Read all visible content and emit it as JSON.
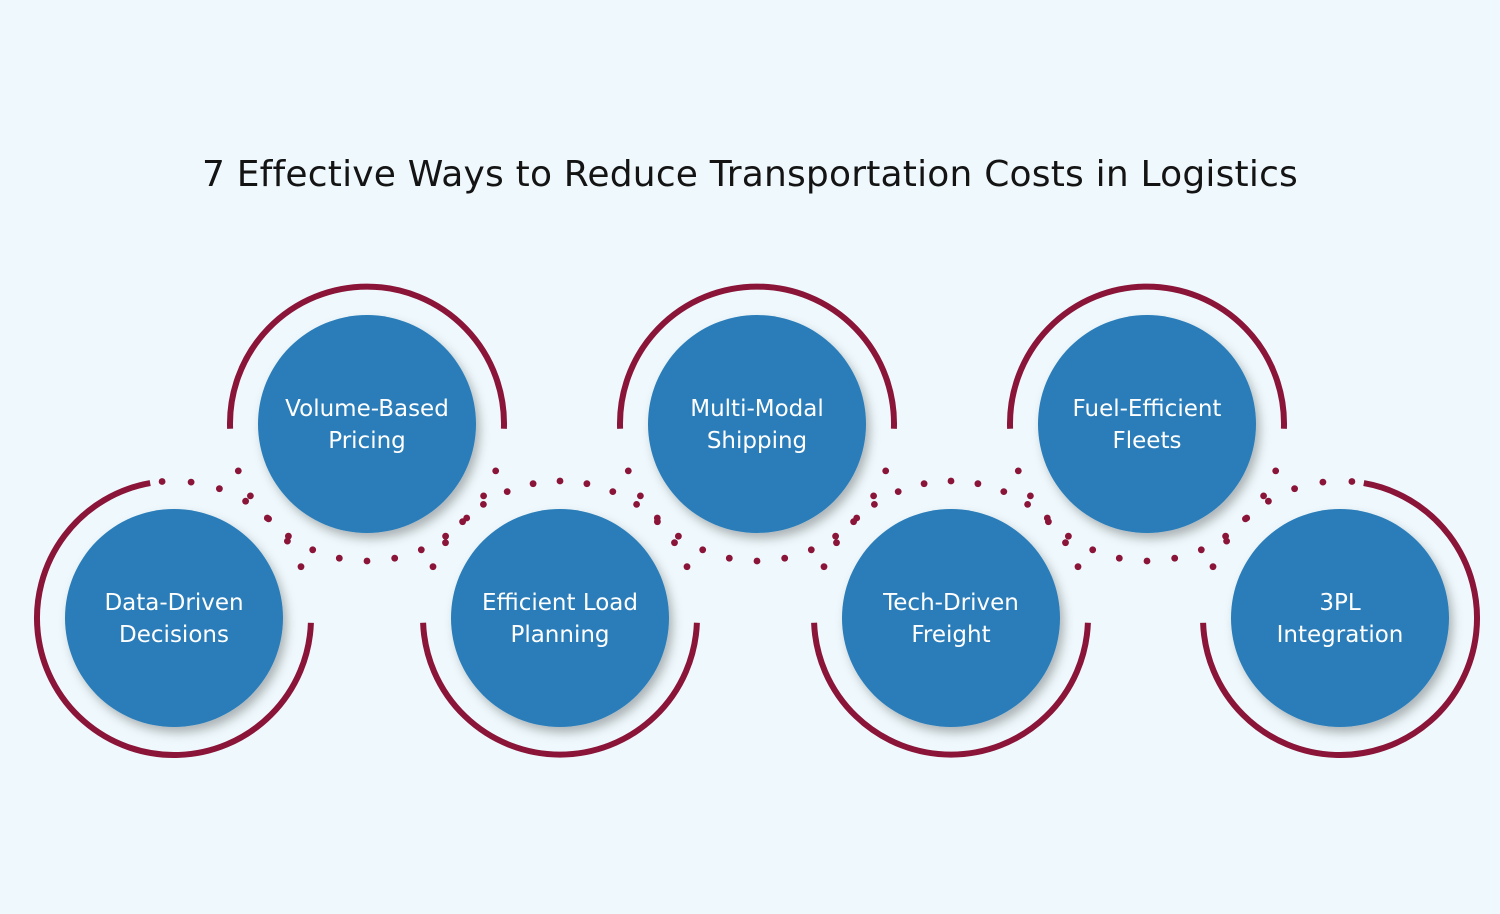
{
  "title": "7 Effective Ways to Reduce Transportation Costs in Logistics",
  "colors": {
    "background": "#eff9fd",
    "circle_fill": "#2a7db9",
    "arc": "#8a1538",
    "dots": "#8a1538",
    "title": "#141414"
  },
  "steps": [
    {
      "lines": [
        "Data-Driven",
        "Decisions"
      ]
    },
    {
      "lines": [
        "Volume-Based",
        "Pricing"
      ]
    },
    {
      "lines": [
        "Efficient Load",
        "Planning"
      ]
    },
    {
      "lines": [
        "Multi-Modal",
        "Shipping"
      ]
    },
    {
      "lines": [
        "Tech-Driven",
        "Freight"
      ]
    },
    {
      "lines": [
        "Fuel-Efficient",
        "Fleets"
      ]
    },
    {
      "lines": [
        "3PL",
        "Integration"
      ]
    }
  ]
}
